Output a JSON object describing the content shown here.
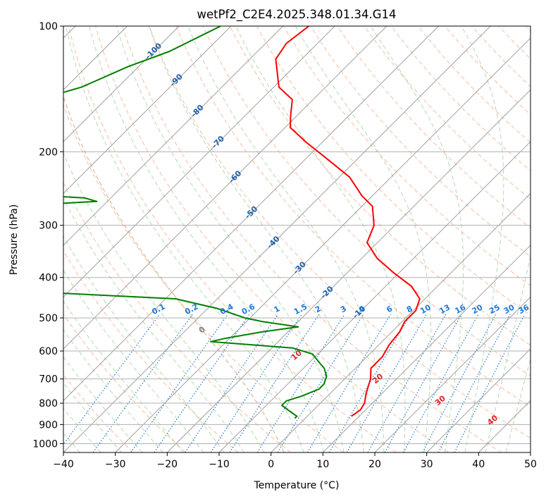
{
  "chart_data": {
    "type": "line",
    "title": "wetPf2_C2E4.2025.348.01.34.G14",
    "xlabel": "Temperature (°C)",
    "ylabel": "Pressure (hPa)",
    "xlim": [
      -40,
      50
    ],
    "ylim": [
      1050,
      100
    ],
    "y_scale": "log",
    "grid": true,
    "x_ticks": [
      -40,
      -30,
      -20,
      -10,
      0,
      10,
      20,
      30,
      40,
      50
    ],
    "y_ticks": [
      100,
      200,
      300,
      400,
      500,
      600,
      700,
      800,
      900,
      1000
    ],
    "x_tick_labels": [
      "−40",
      "−30",
      "−20",
      "−10",
      "0",
      "10",
      "20",
      "30",
      "40",
      "50"
    ],
    "y_tick_labels": [
      "100",
      "200",
      "300",
      "400",
      "500",
      "600",
      "700",
      "800",
      "900",
      "1000"
    ],
    "skew": 35,
    "colors": {
      "temperature": "#ff0000",
      "dewpoint": "#008000",
      "isotherm": "#a0a0a0",
      "dry_adiabat": "#f4a582",
      "moist_adiabat": "#7fbf7f",
      "mixing_ratio": "#1f78d4",
      "isotherm_label": "#1f5fa8",
      "moist_label": "#d62728",
      "zero_label": "#808080"
    },
    "isotherm_labels": [
      {
        "t": -100,
        "text": "-100",
        "p": 115
      },
      {
        "t": -90,
        "text": "-90",
        "p": 135
      },
      {
        "t": -80,
        "text": "-80",
        "p": 160
      },
      {
        "t": -70,
        "text": "-70",
        "p": 190
      },
      {
        "t": -60,
        "text": "-60",
        "p": 230
      },
      {
        "t": -50,
        "text": "-50",
        "p": 280
      },
      {
        "t": -40,
        "text": "-40",
        "p": 330
      },
      {
        "t": -30,
        "text": "-30",
        "p": 380
      },
      {
        "t": -20,
        "text": "-20",
        "p": 435
      },
      {
        "t": -10,
        "text": "-10",
        "p": 485
      }
    ],
    "mixing_ratio_labels": [
      "0.1",
      "0.2",
      "0.4",
      "0.6",
      "1",
      "1.5",
      "2",
      "3",
      "4",
      "6",
      "8",
      "10",
      "13",
      "16",
      "20",
      "25",
      "30",
      "36"
    ],
    "mixing_ratio_values": [
      0.1,
      0.2,
      0.4,
      0.6,
      1,
      1.5,
      2,
      3,
      4,
      6,
      8,
      10,
      13,
      16,
      20,
      25,
      30,
      36
    ],
    "mixing_ratio_label_p": 490,
    "moist_labels": [
      {
        "t": 0,
        "text": "0",
        "p": 535
      },
      {
        "t": 10,
        "text": "10",
        "p": 615
      },
      {
        "t": 20,
        "text": "20",
        "p": 700
      },
      {
        "t": 30,
        "text": "30",
        "p": 790
      },
      {
        "t": 40,
        "text": "40",
        "p": 880
      }
    ],
    "series": [
      {
        "name": "Temperature",
        "p": [
          100,
          110,
          120,
          140,
          150,
          165,
          175,
          190,
          205,
          230,
          255,
          270,
          300,
          330,
          360,
          390,
          420,
          450,
          480,
          510,
          540,
          580,
          620,
          660,
          700,
          730,
          760,
          800,
          830,
          860
        ],
        "t": [
          -75,
          -76,
          -75,
          -69,
          -64,
          -61,
          -59,
          -53,
          -47,
          -38,
          -32,
          -28,
          -24,
          -22,
          -17,
          -11,
          -5,
          -1,
          0.5,
          0.5,
          1.5,
          2,
          3,
          3,
          5,
          6,
          7,
          8.5,
          9,
          8.5
        ]
      },
      {
        "name": "Dewpoint",
        "p": [
          100,
          115,
          125,
          140,
          150,
          160,
          170,
          185,
          198,
          210,
          230,
          240,
          250,
          258,
          263,
          272,
          300,
          330,
          345,
          350,
          360,
          372,
          380,
          400,
          430,
          450,
          475,
          500,
          510,
          525,
          540,
          560,
          570,
          590,
          610,
          640,
          660,
          690,
          720,
          740,
          770,
          790,
          810,
          840,
          860,
          870
        ],
        "t": [
          -92,
          -97,
          -102,
          -107,
          -113,
          -116,
          -113,
          -107,
          -107,
          -116,
          -116,
          -113,
          -105,
          -85,
          -82,
          -103,
          -98,
          -96,
          -86,
          -85,
          -87,
          -93,
          -95,
          -89,
          -82,
          -48,
          -38,
          -31,
          -27,
          -19,
          -25,
          -31,
          -33,
          -16,
          -11,
          -8,
          -6,
          -4,
          -3,
          -3,
          -5,
          -7,
          -7,
          -4,
          -2,
          -2
        ]
      }
    ]
  }
}
